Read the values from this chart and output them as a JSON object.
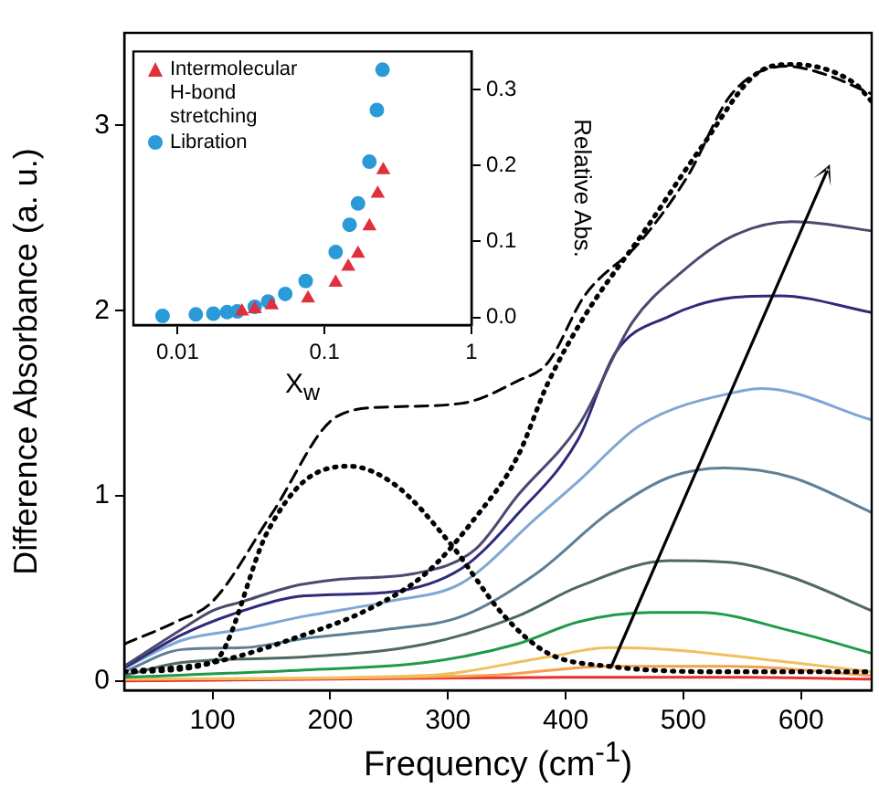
{
  "chart_data": [
    {
      "type": "line",
      "xlabel": "Frequency (cm$^{-1}$)",
      "ylabel": "Difference Absorbance (a. u.)",
      "xlim": [
        25,
        660
      ],
      "ylim": [
        -0.05,
        3.5
      ],
      "xticks": [
        100,
        200,
        300,
        400,
        500,
        600
      ],
      "yticks": [
        0,
        1,
        2,
        3
      ],
      "grid": false,
      "legend": false,
      "series": [
        {
          "color": "#000000",
          "line_style": "dashed",
          "x": [
            25,
            69,
            100,
            150,
            206,
            250,
            312,
            359,
            385,
            416,
            463,
            504,
            541,
            588,
            623,
            660
          ],
          "values": [
            0.2,
            0.32,
            0.43,
            0.9,
            1.43,
            1.48,
            1.5,
            1.62,
            1.72,
            2.08,
            2.37,
            2.73,
            3.17,
            3.32,
            3.27,
            3.17
          ]
        },
        {
          "color": "#000000",
          "line_style": "dotted",
          "x": [
            25,
            100,
            178,
            230,
            281,
            323,
            359,
            385,
            416,
            468,
            514,
            567,
            593,
            645,
            660
          ],
          "values": [
            0.05,
            0.1,
            0.25,
            0.38,
            0.58,
            0.88,
            1.21,
            1.61,
            1.97,
            2.44,
            2.87,
            3.3,
            3.33,
            3.23,
            3.13
          ]
        },
        {
          "color": "#000000",
          "line_style": "dotted",
          "x": [
            25,
            100,
            147,
            178,
            216,
            255,
            301,
            348,
            385,
            436,
            539,
            660
          ],
          "values": [
            0.05,
            0.1,
            0.81,
            1.08,
            1.16,
            1.06,
            0.75,
            0.35,
            0.15,
            0.08,
            0.05,
            0.05
          ]
        },
        {
          "color": "#4b4a6e",
          "line_style": "solid",
          "x": [
            25,
            74,
            100,
            126,
            167,
            209,
            271,
            323,
            359,
            411,
            457,
            497,
            541,
            592,
            618,
            660
          ],
          "values": [
            0.08,
            0.28,
            0.38,
            0.43,
            0.51,
            0.55,
            0.58,
            0.71,
            1.0,
            1.38,
            1.94,
            2.2,
            2.4,
            2.48,
            2.47,
            2.43
          ]
        },
        {
          "color": "#2e2a7a",
          "line_style": "solid",
          "x": [
            25,
            74,
            126,
            178,
            250,
            312,
            359,
            411,
            442,
            488,
            541,
            582,
            660
          ],
          "values": [
            0.07,
            0.25,
            0.38,
            0.46,
            0.48,
            0.61,
            0.9,
            1.31,
            1.77,
            1.97,
            2.07,
            2.08,
            1.99
          ]
        },
        {
          "color": "#7fa7d4",
          "line_style": "solid",
          "x": [
            25,
            74,
            126,
            178,
            250,
            312,
            375,
            411,
            463,
            552,
            567,
            660
          ],
          "values": [
            0.07,
            0.22,
            0.28,
            0.35,
            0.43,
            0.53,
            0.88,
            1.08,
            1.38,
            1.57,
            1.58,
            1.41
          ]
        },
        {
          "color": "#5e7f95",
          "line_style": "solid",
          "x": [
            25,
            74,
            126,
            178,
            250,
            312,
            375,
            437,
            488,
            535,
            592,
            660
          ],
          "values": [
            0.05,
            0.17,
            0.18,
            0.23,
            0.28,
            0.35,
            0.58,
            0.91,
            1.1,
            1.15,
            1.1,
            0.91
          ]
        },
        {
          "color": "#4e6a60",
          "line_style": "solid",
          "x": [
            25,
            74,
            178,
            281,
            359,
            411,
            488,
            541,
            592,
            660
          ],
          "values": [
            0.03,
            0.1,
            0.13,
            0.2,
            0.35,
            0.51,
            0.65,
            0.64,
            0.56,
            0.38
          ]
        },
        {
          "color": "#1f9a4a",
          "line_style": "solid",
          "x": [
            25,
            178,
            281,
            359,
            411,
            472,
            514,
            592,
            660
          ],
          "values": [
            0.02,
            0.06,
            0.1,
            0.2,
            0.32,
            0.37,
            0.37,
            0.27,
            0.15
          ]
        },
        {
          "color": "#f0c060",
          "line_style": "solid",
          "x": [
            25,
            281,
            385,
            437,
            488,
            592,
            660
          ],
          "values": [
            0.01,
            0.03,
            0.13,
            0.18,
            0.17,
            0.1,
            0.05
          ]
        },
        {
          "color": "#f5a050",
          "line_style": "solid",
          "x": [
            25,
            333,
            437,
            541,
            660
          ],
          "values": [
            0.01,
            0.03,
            0.08,
            0.08,
            0.03
          ]
        },
        {
          "color": "#e83030",
          "line_style": "solid",
          "x": [
            25,
            200,
            400,
            550,
            660
          ],
          "values": [
            0.0,
            0.01,
            0.02,
            0.02,
            0.01
          ]
        }
      ]
    },
    {
      "type": "scatter",
      "xlabel": "X$_{w}$",
      "ylabel": "Relative Abs.",
      "log": "x",
      "xlim": [
        0.005,
        1
      ],
      "ylim": [
        -0.01,
        0.35
      ],
      "xticks": [
        0.01,
        0.1,
        1
      ],
      "yticks": [
        {
          "value": 0,
          "label": "0.0"
        },
        0.1,
        0.2,
        0.3
      ],
      "grid": false,
      "legend": "top left",
      "series": [
        {
          "name": "Intermolecular H-bond stretching",
          "color": "#e0303c",
          "marker": "triangle",
          "x": [
            0.0274,
            0.0335,
            0.0437,
            0.0772,
            0.119,
            0.145,
            0.169,
            0.202,
            0.23,
            0.251
          ],
          "values": [
            0.008,
            0.011,
            0.016,
            0.025,
            0.046,
            0.067,
            0.084,
            0.12,
            0.163,
            0.194
          ]
        },
        {
          "name": "Libration",
          "color": "#2a9ad8",
          "marker": "circle",
          "x": [
            0.0079,
            0.0133,
            0.0175,
            0.0217,
            0.0255,
            0.0335,
            0.0413,
            0.054,
            0.0744,
            0.119,
            0.148,
            0.169,
            0.202,
            0.227,
            0.248
          ],
          "values": [
            0.002,
            0.004,
            0.005,
            0.007,
            0.008,
            0.014,
            0.021,
            0.031,
            0.048,
            0.086,
            0.122,
            0.15,
            0.205,
            0.273,
            0.326
          ]
        }
      ]
    }
  ]
}
